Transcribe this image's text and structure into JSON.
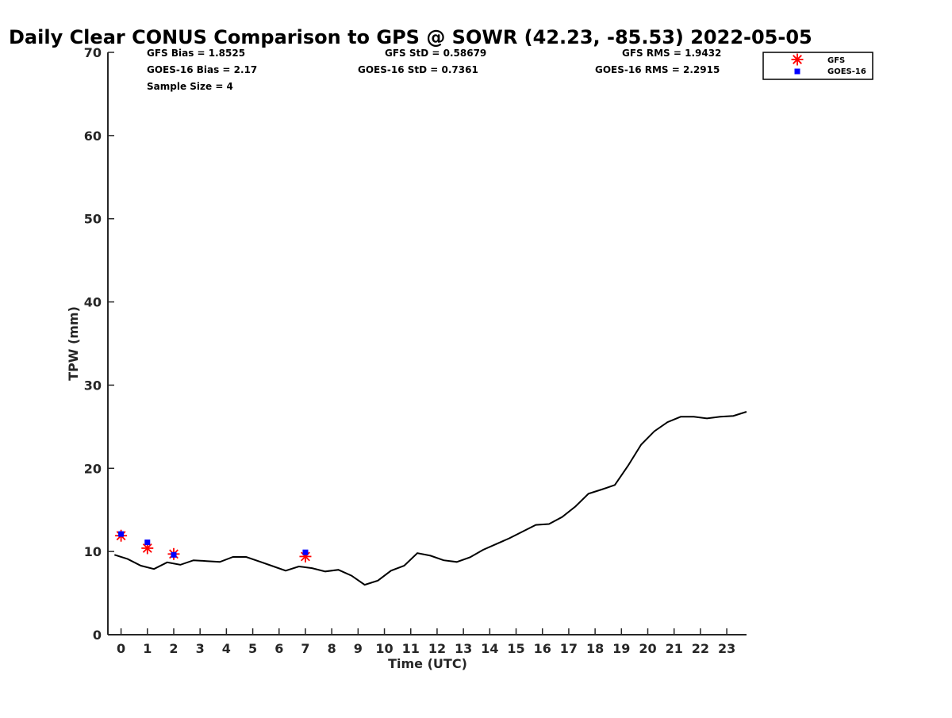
{
  "chart_data": {
    "type": "line",
    "title": "Daily Clear CONUS Comparison to GPS @ SOWR (42.23, -85.53) 2022-05-05",
    "xlabel": "Time (UTC)",
    "ylabel": "TPW (mm)",
    "xlim": [
      -0.5,
      23.75
    ],
    "ylim": [
      0,
      70
    ],
    "x_ticks": [
      0,
      1,
      2,
      3,
      4,
      5,
      6,
      7,
      8,
      9,
      10,
      11,
      12,
      13,
      14,
      15,
      16,
      17,
      18,
      19,
      20,
      21,
      22,
      23
    ],
    "y_ticks": [
      0,
      10,
      20,
      30,
      40,
      50,
      60,
      70
    ],
    "stats": [
      [
        "GFS Bias = 1.8525",
        "GFS StD = 0.58679",
        "GFS RMS = 1.9432"
      ],
      [
        "GOES-16 Bias = 2.17",
        "GOES-16 StD = 0.7361",
        "GOES-16 RMS = 2.2915"
      ],
      [
        "Sample Size = 4"
      ]
    ],
    "legend": {
      "position": "top-right",
      "entries": [
        "GFS",
        "GOES-16"
      ]
    },
    "colors": {
      "gps": "#000000",
      "gfs": "#ff0000",
      "goes": "#0000ff"
    },
    "series": [
      {
        "name": "GPS",
        "kind": "line",
        "x": [
          -0.25,
          0.25,
          0.75,
          1.25,
          1.75,
          2.25,
          2.75,
          3.25,
          3.75,
          4.25,
          4.75,
          5.25,
          5.75,
          6.25,
          6.75,
          7.25,
          7.75,
          8.25,
          8.75,
          9.25,
          9.75,
          10.25,
          10.75,
          11.25,
          11.75,
          12.25,
          12.75,
          13.25,
          13.75,
          14.25,
          14.75,
          15.25,
          15.75,
          16.25,
          16.75,
          17.25,
          17.75,
          18.25,
          18.75,
          19.25,
          19.75,
          20.25,
          20.75,
          21.25,
          21.75,
          22.25,
          22.75,
          23.25,
          23.75
        ],
        "values": [
          9.6,
          9.1,
          8.3,
          7.9,
          8.7,
          8.4,
          8.95,
          8.85,
          8.75,
          9.35,
          9.35,
          8.8,
          8.25,
          7.7,
          8.2,
          8.0,
          7.6,
          7.8,
          7.1,
          6.0,
          6.5,
          7.7,
          8.3,
          9.8,
          9.5,
          8.95,
          8.75,
          9.3,
          10.2,
          10.9,
          11.6,
          12.4,
          13.2,
          13.3,
          14.15,
          15.4,
          16.95,
          17.45,
          18.0,
          20.3,
          22.85,
          24.45,
          25.55,
          26.2,
          26.2,
          26.0,
          26.2,
          26.3,
          26.8
        ]
      },
      {
        "name": "GFS",
        "kind": "marker-asterisk",
        "x": [
          0.0,
          1.0,
          2.0,
          7.0
        ],
        "values": [
          11.9,
          10.4,
          9.7,
          9.4
        ]
      },
      {
        "name": "GOES-16",
        "kind": "marker-square",
        "x": [
          0.0,
          1.0,
          2.0,
          7.0
        ],
        "values": [
          12.1,
          11.1,
          9.6,
          9.9
        ]
      }
    ]
  }
}
